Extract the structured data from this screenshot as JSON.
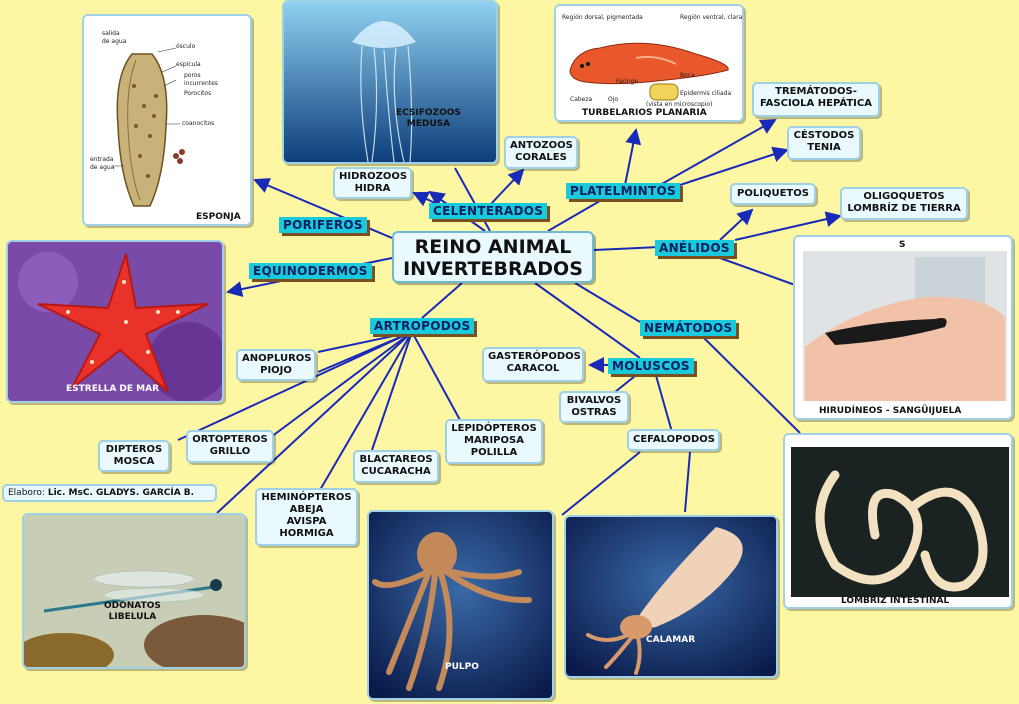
{
  "center": {
    "line1": "REINO ANIMAL",
    "line2": "INVERTEBRADOS"
  },
  "categories": {
    "poriferos": "PORIFEROS",
    "celenterados": "CELENTERADOS",
    "platelmintos": "PLATELMINTOS",
    "anelidos": "ANÉLIDOS",
    "equinodermos": "EQUINODERMOS",
    "artropodos": "ARTROPODOS",
    "nematodos": "NEMÁTODOS",
    "moluscos": "MOLUSCOS"
  },
  "boxes": {
    "hidrozoos": [
      "HIDROZOOS",
      "HIDRA"
    ],
    "antozoos": [
      "ANTOZOOS",
      "CORALES"
    ],
    "trematodos": [
      "TREMÁTODOS-",
      "FASCIOLA HEPÁTICA"
    ],
    "cestodos": [
      "CÉSTODOS",
      "TENIA"
    ],
    "poliquetos": [
      "POLIQUETOS"
    ],
    "oligoquetos": [
      "OLIGOQUETOS",
      "LOMBRÍZ DE TIERRA"
    ],
    "anopluros": [
      "ANOPLUROS",
      "PIOJO"
    ],
    "dipteros": [
      "DIPTEROS",
      "MOSCA"
    ],
    "ortopteros": [
      "ORTOPTEROS",
      "GRILLO"
    ],
    "blactareos": [
      "BLACTAREOS",
      "CUCARACHA"
    ],
    "lepidopteros": [
      "LEPIDÓPTEROS",
      "MARIPOSA",
      "POLILLA"
    ],
    "heminopteros": [
      "HEMINÓPTEROS",
      "ABEJA",
      "AVISPA",
      "HORMIGA"
    ],
    "gasteropodos": [
      "GASTERÓPODOS",
      "CARACOL"
    ],
    "bivalvos": [
      "BIVALVOS",
      "OSTRAS"
    ],
    "cefalopodos": [
      "CEFALOPODOS"
    ]
  },
  "credit": {
    "prefix": "Elaboro: ",
    "name": "Lic. MsC. GLADYS. GARCÍA B."
  },
  "captions": {
    "esponja": "ESPONJA",
    "medusa": [
      "ECSIFOZOOS",
      "MEDUSA"
    ],
    "planaria": "TURBELARIOS  PLANARIA",
    "estrella": "ESTRELLA DE MAR",
    "sanguijuela_top": "S",
    "sanguijuela": "HIRUDÍNEOS  -  SANGÜIJUELA",
    "lombriz": "LOMBRIZ INTESTINAL",
    "libelula": [
      "ODONATOS",
      "LIBELULA"
    ],
    "pulpo": "PULPO",
    "calamar": "CALAMAR"
  },
  "sponge_labels": {
    "salida": [
      "salida",
      "de agua"
    ],
    "osculo": "ósculo",
    "espicula": "espícula",
    "poros": [
      "poros",
      "incurrentes"
    ],
    "porocitos": "Porocitos",
    "coanocitos": "coanocitos",
    "entrada": [
      "entrada",
      "de agua"
    ]
  },
  "planaria_labels": {
    "dorsal": "Región dorsal, pigmentada",
    "ventral": "Región ventral, clara",
    "faringe": "Faringe",
    "boca": "Boca",
    "cabeza": "Cabeza",
    "ojo": "Ojo",
    "epidermis": "Epidermis ciliada",
    "vista": "(vista en microscopio)"
  },
  "colors": {
    "background": "#fdf6a3",
    "category_fill": "#19c9dc",
    "category_shadow": "#7a4f22",
    "connector": "#1a2ab8",
    "box_fill": "#eaf9fd"
  }
}
